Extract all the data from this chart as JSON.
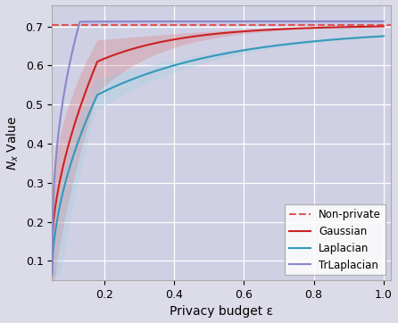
{
  "xlabel": "Privacy budget ε",
  "ylabel": "$N_{x}$ Value",
  "non_private_value": 0.703,
  "epsilon_min": 0.05,
  "epsilon_max": 1.0,
  "n_points": 300,
  "color_nonprivate": "#e05555",
  "color_gaussian": "#cc2222",
  "color_laplacian": "#3399bb",
  "color_trlaplacian": "#8888cc",
  "fill_gaussian_color": "#dd6666",
  "fill_laplacian_color": "#88ccdd",
  "fill_trlaplacian_color": "#aaaadd",
  "fill_gaussian_alpha": 0.25,
  "fill_laplacian_alpha": 0.22,
  "fill_trlaplacian_alpha": 0.22,
  "ylim_min": 0.05,
  "ylim_max": 0.755,
  "xlim_min": 0.05,
  "xlim_max": 1.02,
  "xticks": [
    0.2,
    0.4,
    0.6,
    0.8,
    1.0
  ],
  "yticks": [
    0.1,
    0.2,
    0.3,
    0.4,
    0.5,
    0.6,
    0.7
  ],
  "bg_left": "#dcdce8",
  "bg_right": "#d0d0e4",
  "bg_split": 0.15
}
